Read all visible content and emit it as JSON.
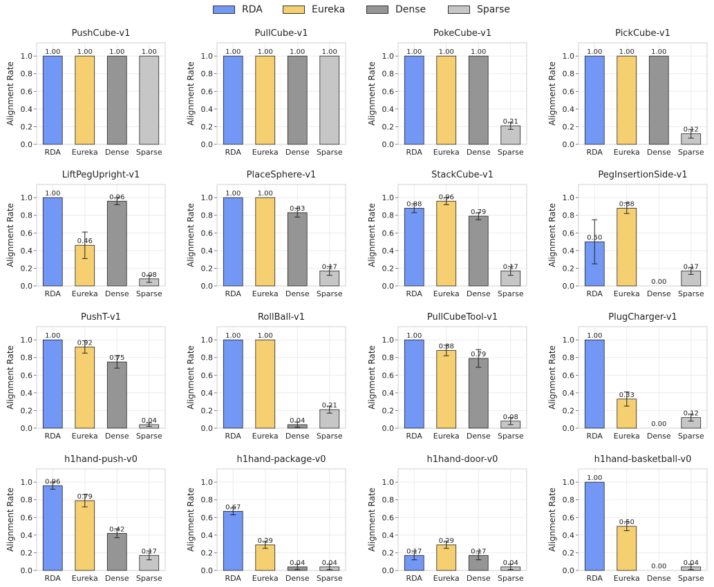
{
  "legend": [
    {
      "name": "RDA",
      "color": "#7297f5"
    },
    {
      "name": "Eureka",
      "color": "#f5cf70"
    },
    {
      "name": "Dense",
      "color": "#959595"
    },
    {
      "name": "Sparse",
      "color": "#c6c6c6"
    }
  ],
  "chart_data": [
    {
      "type": "bar",
      "title": "PushCube-v1",
      "categories": [
        "RDA",
        "Eureka",
        "Dense",
        "Sparse"
      ],
      "values": [
        1.0,
        1.0,
        1.0,
        1.0
      ],
      "errors": [
        0,
        0,
        0,
        0
      ],
      "value_labels": [
        "1.00",
        "1.00",
        "1.00",
        "1.00"
      ],
      "ylabel": "Alignment Rate",
      "ylim": [
        0,
        1.15
      ],
      "yticks": [
        "0.0",
        "0.2",
        "0.4",
        "0.6",
        "0.8",
        "1.0"
      ],
      "grid": true
    },
    {
      "type": "bar",
      "title": "PullCube-v1",
      "categories": [
        "RDA",
        "Eureka",
        "Dense",
        "Sparse"
      ],
      "values": [
        1.0,
        1.0,
        1.0,
        1.0
      ],
      "errors": [
        0,
        0,
        0,
        0
      ],
      "value_labels": [
        "1.00",
        "1.00",
        "1.00",
        "1.00"
      ],
      "ylabel": "Alignment Rate",
      "ylim": [
        0,
        1.15
      ],
      "yticks": [
        "0.0",
        "0.2",
        "0.4",
        "0.6",
        "0.8",
        "1.0"
      ],
      "grid": true
    },
    {
      "type": "bar",
      "title": "PokeCube-v1",
      "categories": [
        "RDA",
        "Eureka",
        "Dense",
        "Sparse"
      ],
      "values": [
        1.0,
        1.0,
        1.0,
        0.21
      ],
      "errors": [
        0,
        0,
        0,
        0.04
      ],
      "value_labels": [
        "1.00",
        "1.00",
        "1.00",
        "0.21"
      ],
      "ylabel": "Alignment Rate",
      "ylim": [
        0,
        1.15
      ],
      "yticks": [
        "0.0",
        "0.2",
        "0.4",
        "0.6",
        "0.8",
        "1.0"
      ],
      "grid": true
    },
    {
      "type": "bar",
      "title": "PickCube-v1",
      "categories": [
        "RDA",
        "Eureka",
        "Dense",
        "Sparse"
      ],
      "values": [
        1.0,
        1.0,
        1.0,
        0.12
      ],
      "errors": [
        0,
        0,
        0,
        0.05
      ],
      "value_labels": [
        "1.00",
        "1.00",
        "1.00",
        "0.12"
      ],
      "ylabel": "Alignment Rate",
      "ylim": [
        0,
        1.15
      ],
      "yticks": [
        "0.0",
        "0.2",
        "0.4",
        "0.6",
        "0.8",
        "1.0"
      ],
      "grid": true
    },
    {
      "type": "bar",
      "title": "LiftPegUpright-v1",
      "categories": [
        "RDA",
        "Eureka",
        "Dense",
        "Sparse"
      ],
      "values": [
        1.0,
        0.46,
        0.96,
        0.08
      ],
      "errors": [
        0,
        0.15,
        0.04,
        0.04
      ],
      "value_labels": [
        "1.00",
        "0.46",
        "0.96",
        "0.08"
      ],
      "ylabel": "Alignment Rate",
      "ylim": [
        0,
        1.15
      ],
      "yticks": [
        "0.0",
        "0.2",
        "0.4",
        "0.6",
        "0.8",
        "1.0"
      ],
      "grid": true
    },
    {
      "type": "bar",
      "title": "PlaceSphere-v1",
      "categories": [
        "RDA",
        "Eureka",
        "Dense",
        "Sparse"
      ],
      "values": [
        1.0,
        1.0,
        0.83,
        0.17
      ],
      "errors": [
        0,
        0,
        0.05,
        0.05
      ],
      "value_labels": [
        "1.00",
        "1.00",
        "0.83",
        "0.17"
      ],
      "ylabel": "Alignment Rate",
      "ylim": [
        0,
        1.15
      ],
      "yticks": [
        "0.0",
        "0.2",
        "0.4",
        "0.6",
        "0.8",
        "1.0"
      ],
      "grid": true
    },
    {
      "type": "bar",
      "title": "StackCube-v1",
      "categories": [
        "RDA",
        "Eureka",
        "Dense",
        "Sparse"
      ],
      "values": [
        0.88,
        0.96,
        0.79,
        0.17
      ],
      "errors": [
        0.05,
        0.04,
        0.04,
        0.05
      ],
      "value_labels": [
        "0.88",
        "0.96",
        "0.79",
        "0.17"
      ],
      "ylabel": "Alignment Rate",
      "ylim": [
        0,
        1.15
      ],
      "yticks": [
        "0.0",
        "0.2",
        "0.4",
        "0.6",
        "0.8",
        "1.0"
      ],
      "grid": true
    },
    {
      "type": "bar",
      "title": "PegInsertionSide-v1",
      "categories": [
        "RDA",
        "Eureka",
        "Dense",
        "Sparse"
      ],
      "values": [
        0.5,
        0.88,
        0.0,
        0.17
      ],
      "errors": [
        0.25,
        0.06,
        0,
        0.04
      ],
      "value_labels": [
        "0.50",
        "0.88",
        "0.00",
        "0.17"
      ],
      "ylabel": "Alignment Rate",
      "ylim": [
        0,
        1.15
      ],
      "yticks": [
        "0.0",
        "0.2",
        "0.4",
        "0.6",
        "0.8",
        "1.0"
      ],
      "grid": true
    },
    {
      "type": "bar",
      "title": "PushT-v1",
      "categories": [
        "RDA",
        "Eureka",
        "Dense",
        "Sparse"
      ],
      "values": [
        1.0,
        0.92,
        0.75,
        0.04
      ],
      "errors": [
        0,
        0.07,
        0.07,
        0.02
      ],
      "value_labels": [
        "1.00",
        "0.92",
        "0.75",
        "0.04"
      ],
      "ylabel": "Alignment Rate",
      "ylim": [
        0,
        1.15
      ],
      "yticks": [
        "0.0",
        "0.2",
        "0.4",
        "0.6",
        "0.8",
        "1.0"
      ],
      "grid": true
    },
    {
      "type": "bar",
      "title": "RollBall-v1",
      "categories": [
        "RDA",
        "Eureka",
        "Dense",
        "Sparse"
      ],
      "values": [
        1.0,
        1.0,
        0.04,
        0.21
      ],
      "errors": [
        0,
        0,
        0.03,
        0.04
      ],
      "value_labels": [
        "1.00",
        "1.00",
        "0.04",
        "0.21"
      ],
      "ylabel": "Alignment Rate",
      "ylim": [
        0,
        1.15
      ],
      "yticks": [
        "0.0",
        "0.2",
        "0.4",
        "0.6",
        "0.8",
        "1.0"
      ],
      "grid": true
    },
    {
      "type": "bar",
      "title": "PullCubeTool-v1",
      "categories": [
        "RDA",
        "Eureka",
        "Dense",
        "Sparse"
      ],
      "values": [
        1.0,
        0.88,
        0.79,
        0.08
      ],
      "errors": [
        0,
        0.06,
        0.1,
        0.04
      ],
      "value_labels": [
        "1.00",
        "0.88",
        "0.79",
        "0.08"
      ],
      "ylabel": "Alignment Rate",
      "ylim": [
        0,
        1.15
      ],
      "yticks": [
        "0.0",
        "0.2",
        "0.4",
        "0.6",
        "0.8",
        "1.0"
      ],
      "grid": true
    },
    {
      "type": "bar",
      "title": "PlugCharger-v1",
      "categories": [
        "RDA",
        "Eureka",
        "Dense",
        "Sparse"
      ],
      "values": [
        1.0,
        0.33,
        0.0,
        0.12
      ],
      "errors": [
        0,
        0.08,
        0,
        0.04
      ],
      "value_labels": [
        "1.00",
        "0.33",
        "0.00",
        "0.12"
      ],
      "ylabel": "Alignment Rate",
      "ylim": [
        0,
        1.15
      ],
      "yticks": [
        "0.0",
        "0.2",
        "0.4",
        "0.6",
        "0.8",
        "1.0"
      ],
      "grid": true
    },
    {
      "type": "bar",
      "title": "h1hand-push-v0",
      "categories": [
        "RDA",
        "Eureka",
        "Dense",
        "Sparse"
      ],
      "values": [
        0.96,
        0.79,
        0.42,
        0.17
      ],
      "errors": [
        0.04,
        0.07,
        0.05,
        0.05
      ],
      "value_labels": [
        "0.96",
        "0.79",
        "0.42",
        "0.17"
      ],
      "ylabel": "Alignment Rate",
      "ylim": [
        0,
        1.15
      ],
      "yticks": [
        "0.0",
        "0.2",
        "0.4",
        "0.6",
        "0.8",
        "1.0"
      ],
      "grid": true
    },
    {
      "type": "bar",
      "title": "h1hand-package-v0",
      "categories": [
        "RDA",
        "Eureka",
        "Dense",
        "Sparse"
      ],
      "values": [
        0.67,
        0.29,
        0.04,
        0.04
      ],
      "errors": [
        0.04,
        0.04,
        0.03,
        0.03
      ],
      "value_labels": [
        "0.67",
        "0.29",
        "0.04",
        "0.04"
      ],
      "ylabel": "Alignment Rate",
      "ylim": [
        0,
        1.15
      ],
      "yticks": [
        "0.0",
        "0.2",
        "0.4",
        "0.6",
        "0.8",
        "1.0"
      ],
      "grid": true
    },
    {
      "type": "bar",
      "title": "h1hand-door-v0",
      "categories": [
        "RDA",
        "Eureka",
        "Dense",
        "Sparse"
      ],
      "values": [
        0.17,
        0.29,
        0.17,
        0.04
      ],
      "errors": [
        0.05,
        0.04,
        0.05,
        0.03
      ],
      "value_labels": [
        "0.17",
        "0.29",
        "0.17",
        "0.04"
      ],
      "ylabel": "Alignment Rate",
      "ylim": [
        0,
        1.15
      ],
      "yticks": [
        "0.0",
        "0.2",
        "0.4",
        "0.6",
        "0.8",
        "1.0"
      ],
      "grid": true
    },
    {
      "type": "bar",
      "title": "h1hand-basketball-v0",
      "categories": [
        "RDA",
        "Eureka",
        "Dense",
        "Sparse"
      ],
      "values": [
        1.0,
        0.5,
        0.0,
        0.04
      ],
      "errors": [
        0,
        0.05,
        0,
        0.03
      ],
      "value_labels": [
        "1.00",
        "0.50",
        "0.00",
        "0.04"
      ],
      "ylabel": "Alignment Rate",
      "ylim": [
        0,
        1.15
      ],
      "yticks": [
        "0.0",
        "0.2",
        "0.4",
        "0.6",
        "0.8",
        "1.0"
      ],
      "grid": true
    }
  ]
}
